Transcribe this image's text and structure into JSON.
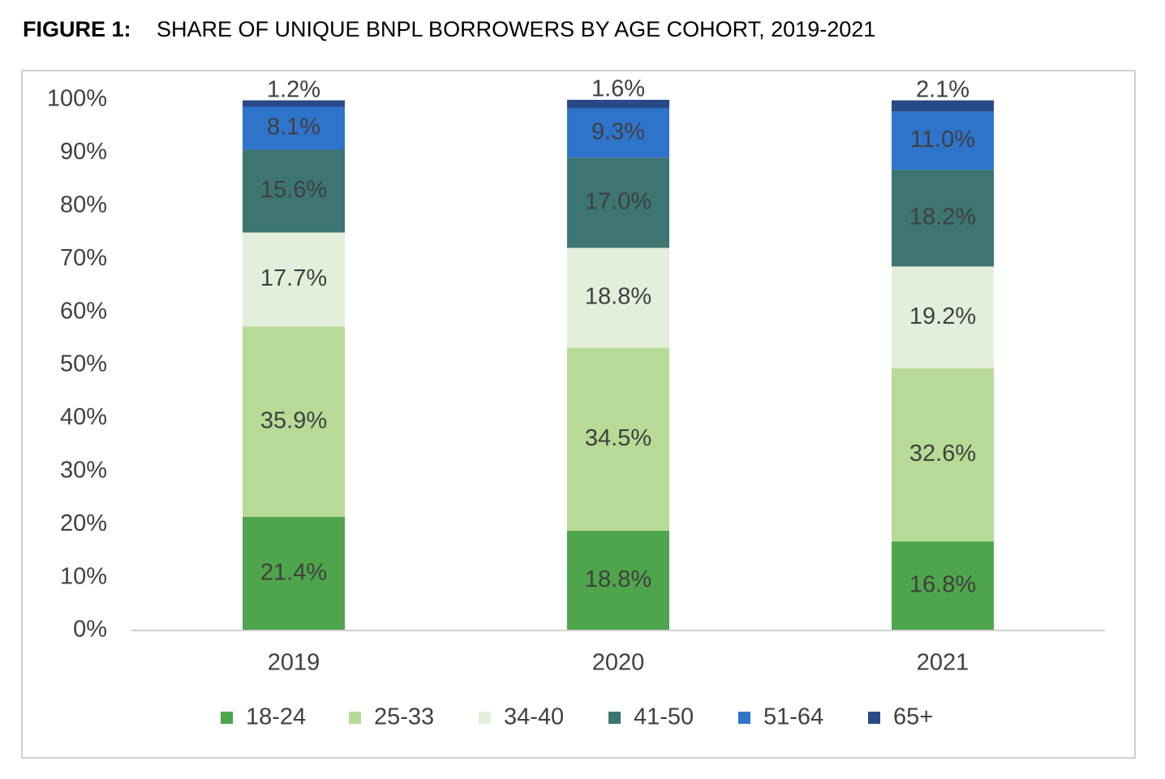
{
  "chart_data": {
    "type": "stacked-bar",
    "figure_label": "FIGURE 1:",
    "title": "SHARE OF UNIQUE BNPL BORROWERS BY AGE COHORT, 2019-2021",
    "categories": [
      "2019",
      "2020",
      "2021"
    ],
    "series": [
      {
        "name": "18-24",
        "color": "#4ea54b",
        "values": [
          21.4,
          18.8,
          16.8
        ],
        "value_labels": [
          "21.4%",
          "18.8%",
          "16.8%"
        ]
      },
      {
        "name": "25-33",
        "color": "#b7db97",
        "values": [
          35.9,
          34.5,
          32.6
        ],
        "value_labels": [
          "35.9%",
          "34.5%",
          "32.6%"
        ]
      },
      {
        "name": "34-40",
        "color": "#e3efdb",
        "values": [
          17.7,
          18.8,
          19.2
        ],
        "value_labels": [
          "17.7%",
          "18.8%",
          "19.2%"
        ]
      },
      {
        "name": "41-50",
        "color": "#3c7571",
        "values": [
          15.6,
          17.0,
          18.2
        ],
        "value_labels": [
          "15.6%",
          "17.0%",
          "18.2%"
        ]
      },
      {
        "name": "51-64",
        "color": "#2f74cb",
        "values": [
          8.1,
          9.3,
          11.0
        ],
        "value_labels": [
          "8.1%",
          "9.3%",
          "11.0%"
        ]
      },
      {
        "name": "65+",
        "color": "#294a89",
        "values": [
          1.2,
          1.6,
          2.1
        ],
        "value_labels": [
          "1.2%",
          "1.6%",
          "2.1%"
        ]
      }
    ],
    "ylim": [
      0,
      100
    ],
    "yticks": [
      {
        "value": 0,
        "label": "0%"
      },
      {
        "value": 10,
        "label": "10%"
      },
      {
        "value": 20,
        "label": "20%"
      },
      {
        "value": 30,
        "label": "30%"
      },
      {
        "value": 40,
        "label": "40%"
      },
      {
        "value": 50,
        "label": "50%"
      },
      {
        "value": 60,
        "label": "60%"
      },
      {
        "value": 70,
        "label": "70%"
      },
      {
        "value": 80,
        "label": "80%"
      },
      {
        "value": 90,
        "label": "90%"
      },
      {
        "value": 100,
        "label": "100%"
      }
    ],
    "grid": false,
    "legend": "bottom"
  }
}
